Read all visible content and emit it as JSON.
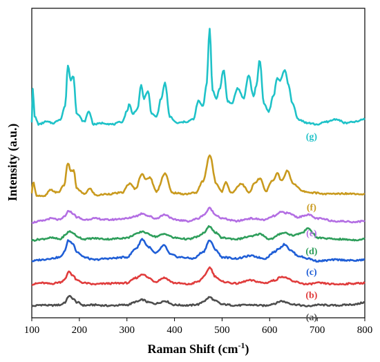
{
  "chart_data": {
    "type": "line",
    "xlabel": "Raman Shift (cm",
    "xlabel_sup": "-1",
    "xlabel_end": ")",
    "ylabel": "Intensity (a.u.)",
    "xlim": [
      100,
      800
    ],
    "ylim": [
      0,
      12
    ],
    "xticks": [
      "100",
      "200",
      "300",
      "400",
      "500",
      "600",
      "700",
      "800"
    ],
    "grid": false,
    "series": [
      {
        "name": "(a)",
        "color": "#4d4d4d",
        "baseline": 0.5,
        "x": [
          100,
          120,
          140,
          160,
          170,
          178,
          186,
          195,
          210,
          230,
          260,
          300,
          320,
          333,
          345,
          360,
          380,
          400,
          430,
          450,
          462,
          474,
          486,
          500,
          530,
          560,
          590,
          610,
          625,
          635,
          650,
          680,
          700,
          740,
          780,
          800
        ],
        "y": [
          0.45,
          0.5,
          0.48,
          0.5,
          0.6,
          0.85,
          0.75,
          0.6,
          0.48,
          0.5,
          0.47,
          0.5,
          0.62,
          0.7,
          0.6,
          0.55,
          0.65,
          0.5,
          0.48,
          0.52,
          0.65,
          0.8,
          0.65,
          0.52,
          0.48,
          0.5,
          0.47,
          0.55,
          0.65,
          0.6,
          0.52,
          0.45,
          0.5,
          0.48,
          0.52,
          0.6
        ]
      },
      {
        "name": "(b)",
        "color": "#e03c3c",
        "baseline": 1.35,
        "x": [
          100,
          120,
          140,
          160,
          170,
          178,
          186,
          195,
          210,
          230,
          260,
          300,
          320,
          333,
          345,
          360,
          378,
          400,
          430,
          450,
          462,
          474,
          486,
          500,
          530,
          558,
          590,
          610,
          625,
          635,
          650,
          680,
          700,
          740,
          780,
          800
        ],
        "y": [
          1.3,
          1.35,
          1.32,
          1.38,
          1.5,
          1.8,
          1.65,
          1.45,
          1.35,
          1.3,
          1.33,
          1.35,
          1.55,
          1.7,
          1.55,
          1.4,
          1.55,
          1.35,
          1.3,
          1.4,
          1.6,
          1.95,
          1.6,
          1.4,
          1.33,
          1.45,
          1.35,
          1.45,
          1.6,
          1.55,
          1.4,
          1.3,
          1.35,
          1.3,
          1.33,
          1.35
        ]
      },
      {
        "name": "(c)",
        "color": "#1f5ed6",
        "baseline": 2.25,
        "x": [
          100,
          120,
          140,
          160,
          170,
          176,
          186,
          195,
          210,
          230,
          260,
          300,
          320,
          332,
          345,
          360,
          378,
          392,
          410,
          440,
          460,
          474,
          486,
          500,
          530,
          560,
          590,
          610,
          620,
          632,
          645,
          660,
          680,
          700,
          740,
          780,
          800
        ],
        "y": [
          2.2,
          2.25,
          2.3,
          2.35,
          2.6,
          3.0,
          2.9,
          2.55,
          2.35,
          2.25,
          2.3,
          2.35,
          2.7,
          3.05,
          2.75,
          2.5,
          2.8,
          2.45,
          2.35,
          2.3,
          2.55,
          3.0,
          2.65,
          2.35,
          2.3,
          2.4,
          2.3,
          2.55,
          2.7,
          2.85,
          2.6,
          2.4,
          2.3,
          2.2,
          2.25,
          2.22,
          2.25
        ]
      },
      {
        "name": "(d)",
        "color": "#2e9e5b",
        "baseline": 3.05,
        "x": [
          100,
          120,
          140,
          160,
          170,
          178,
          186,
          195,
          210,
          230,
          260,
          300,
          320,
          333,
          345,
          360,
          380,
          400,
          430,
          450,
          462,
          474,
          486,
          500,
          530,
          560,
          580,
          600,
          630,
          650,
          670,
          680,
          690,
          700,
          740,
          780,
          800
        ],
        "y": [
          3.0,
          3.05,
          3.1,
          3.05,
          3.2,
          3.35,
          3.3,
          3.15,
          3.05,
          3.08,
          3.05,
          3.1,
          3.25,
          3.35,
          3.25,
          3.15,
          3.25,
          3.1,
          3.05,
          3.15,
          3.3,
          3.55,
          3.3,
          3.1,
          3.05,
          3.15,
          3.25,
          3.05,
          3.3,
          3.2,
          3.3,
          3.5,
          3.3,
          3.1,
          3.05,
          3.02,
          3.05
        ]
      },
      {
        "name": "(e)",
        "color": "#b36ee3",
        "baseline": 3.75,
        "x": [
          100,
          120,
          140,
          160,
          170,
          178,
          186,
          195,
          210,
          230,
          260,
          300,
          320,
          333,
          345,
          360,
          380,
          400,
          430,
          450,
          462,
          474,
          486,
          500,
          530,
          560,
          590,
          610,
          625,
          640,
          660,
          680,
          700,
          740,
          780,
          800
        ],
        "y": [
          3.7,
          3.75,
          3.85,
          3.8,
          3.95,
          4.15,
          4.05,
          3.9,
          3.8,
          3.85,
          3.8,
          3.85,
          3.95,
          4.05,
          3.95,
          3.85,
          4.0,
          3.8,
          3.75,
          3.85,
          4.0,
          4.25,
          4.0,
          3.85,
          3.75,
          3.85,
          3.8,
          3.95,
          4.1,
          4.05,
          3.9,
          4.0,
          3.85,
          3.75,
          3.72,
          3.75
        ]
      },
      {
        "name": "(f)",
        "color": "#c99a1e",
        "baseline": 4.75,
        "x": [
          100,
          103,
          110,
          125,
          140,
          155,
          168,
          176,
          182,
          188,
          195,
          210,
          222,
          235,
          260,
          290,
          305,
          318,
          332,
          340,
          348,
          362,
          380,
          395,
          420,
          445,
          460,
          474,
          488,
          500,
          507,
          520,
          540,
          558,
          567,
          580,
          592,
          605,
          617,
          625,
          637,
          650,
          670,
          690,
          720,
          760,
          800
        ],
        "y": [
          4.8,
          5.3,
          4.75,
          4.7,
          4.95,
          4.85,
          5.15,
          6.0,
          5.7,
          5.7,
          5.0,
          4.8,
          5.0,
          4.75,
          4.8,
          4.85,
          5.2,
          5.0,
          5.6,
          5.35,
          5.45,
          4.9,
          5.6,
          4.85,
          4.8,
          4.85,
          5.3,
          6.3,
          5.2,
          4.9,
          5.25,
          4.85,
          5.2,
          4.85,
          5.2,
          5.4,
          4.9,
          5.3,
          5.6,
          5.3,
          5.7,
          5.2,
          4.9,
          4.85,
          4.8,
          4.82,
          4.8
        ]
      },
      {
        "name": "(g)",
        "color": "#1fc2c8",
        "baseline": 7.5,
        "x": [
          100,
          102,
          106,
          115,
          130,
          145,
          160,
          170,
          176,
          182,
          187,
          195,
          210,
          220,
          230,
          250,
          270,
          290,
          300,
          305,
          312,
          322,
          330,
          336,
          344,
          352,
          362,
          372,
          380,
          390,
          405,
          425,
          440,
          450,
          460,
          467,
          474,
          480,
          488,
          495,
          503,
          512,
          520,
          533,
          545,
          556,
          566,
          572,
          579,
          588,
          598,
          608,
          616,
          622,
          632,
          640,
          648,
          660,
          680,
          700,
          720,
          740,
          760,
          780,
          800
        ],
        "y": [
          7.6,
          8.9,
          7.8,
          7.5,
          7.6,
          7.55,
          7.7,
          8.2,
          9.8,
          9.2,
          9.4,
          7.9,
          7.6,
          8.0,
          7.5,
          7.55,
          7.5,
          7.6,
          8.0,
          8.3,
          7.9,
          8.1,
          9.0,
          8.5,
          8.8,
          7.9,
          7.8,
          8.5,
          9.1,
          7.8,
          7.55,
          7.6,
          7.7,
          8.4,
          8.2,
          9.0,
          11.2,
          8.8,
          8.5,
          8.9,
          9.6,
          8.4,
          8.3,
          8.9,
          8.5,
          9.4,
          8.6,
          9.0,
          10.0,
          8.3,
          8.0,
          8.6,
          9.3,
          9.2,
          9.6,
          9.0,
          8.3,
          7.7,
          7.55,
          7.5,
          7.6,
          7.7,
          7.55,
          7.6,
          7.7
        ]
      }
    ]
  }
}
